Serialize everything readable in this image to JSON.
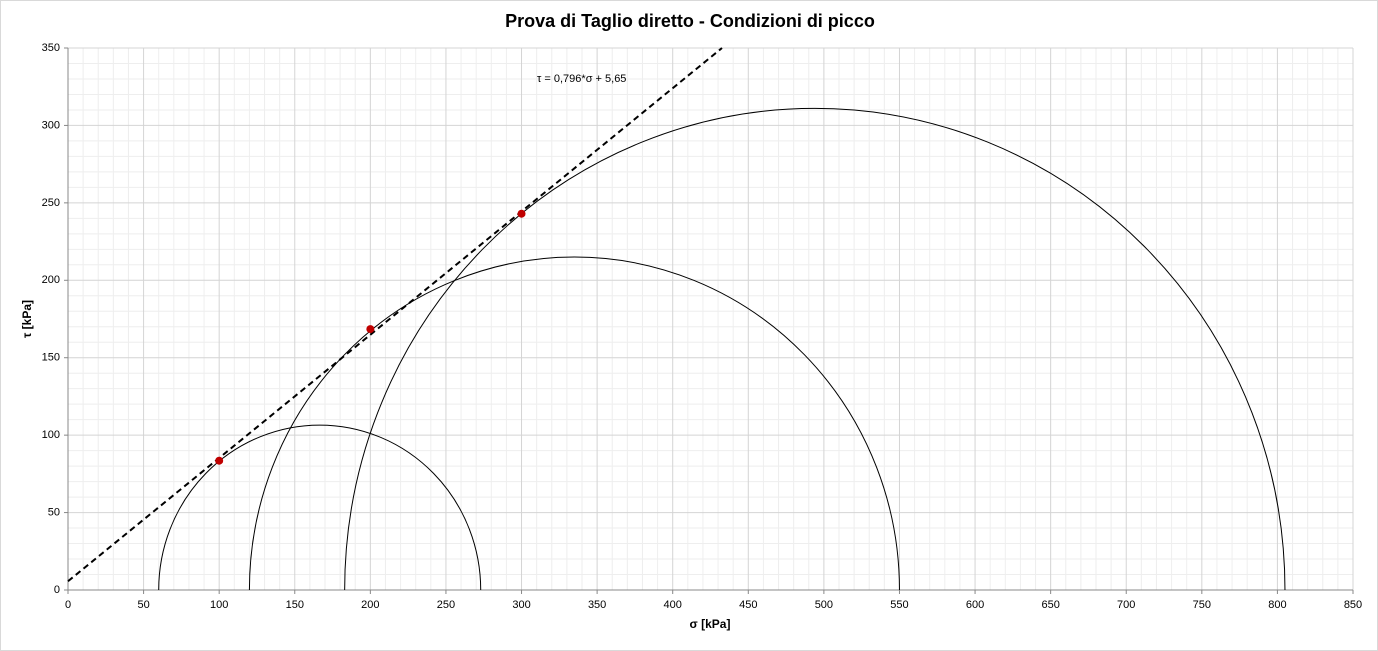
{
  "chart_data": {
    "type": "mohr",
    "title": "Prova di Taglio diretto - Condizioni di picco",
    "x_label": "σ [kPa]",
    "y_label": "τ [kPa]",
    "xlim": [
      0,
      850
    ],
    "xticks": [
      0,
      50,
      100,
      150,
      200,
      250,
      300,
      350,
      400,
      450,
      500,
      550,
      600,
      650,
      700,
      750,
      800,
      850
    ],
    "ylim": [
      0,
      350
    ],
    "yticks": [
      0,
      50,
      100,
      150,
      200,
      250,
      300,
      350
    ],
    "grid": true,
    "circles": [
      {
        "sigma3": 60,
        "sigma1": 273
      },
      {
        "sigma3": 120,
        "sigma1": 550
      },
      {
        "sigma3": 183,
        "sigma1": 805
      }
    ],
    "circle_color": "#000000",
    "series": [
      {
        "color": "#c00000",
        "x": [
          100,
          200,
          300
        ],
        "values": [
          83.5,
          168.5,
          243
        ]
      }
    ],
    "envelope": {
      "slope": 0.796,
      "intercept": 5.65,
      "label": "τ = 0,796*σ + 5,65",
      "color": "#000000"
    }
  }
}
